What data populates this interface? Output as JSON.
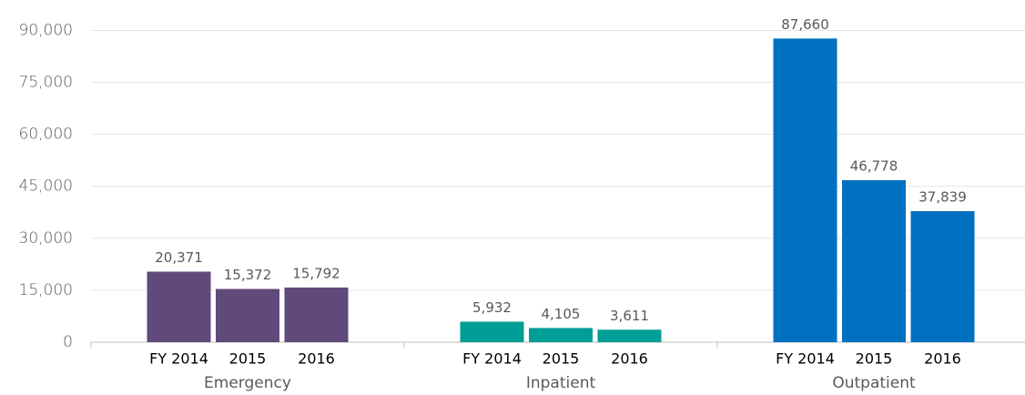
{
  "chart_data": {
    "type": "bar",
    "categories": [
      "FY 2014",
      "2015",
      "2016"
    ],
    "series": [
      {
        "name": "Emergency",
        "color": "#604a7b",
        "values": [
          20371,
          15372,
          15792
        ],
        "value_labels": [
          "20,371",
          "15,372",
          "15,792"
        ]
      },
      {
        "name": "Inpatient",
        "color": "#009e94",
        "values": [
          5932,
          4105,
          3611
        ],
        "value_labels": [
          "5,932",
          "4,105",
          "3,611"
        ]
      },
      {
        "name": "Outpatient",
        "color": "#0070c0",
        "values": [
          87660,
          46778,
          37839
        ],
        "value_labels": [
          "87,660",
          "46,778",
          "37,839"
        ]
      }
    ],
    "ylim": [
      0,
      98000
    ],
    "yticks": [
      0,
      {
        "value": 15000,
        "label": "15,000"
      },
      {
        "value": 30000,
        "label": "30,000"
      },
      {
        "value": 45000,
        "label": "45,000"
      },
      {
        "value": 60000,
        "label": "60,000"
      },
      {
        "value": 75000,
        "label": "75,000"
      },
      {
        "value": 90000,
        "label": "90,000"
      }
    ],
    "grid": true
  }
}
